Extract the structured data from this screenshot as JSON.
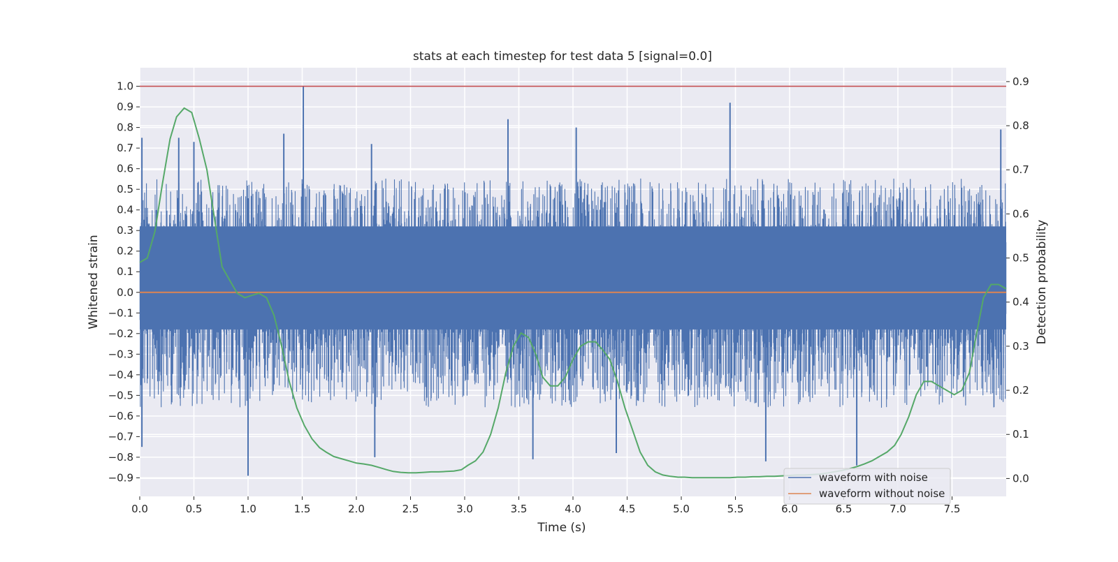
{
  "chart_data": {
    "type": "line",
    "title": "stats at each timestep for test data 5 [signal=0.0]",
    "xlabel": "Time (s)",
    "ylabel": "Whitened strain",
    "y2label": "Detection probability",
    "xlim": [
      0.0,
      8.0
    ],
    "ylim": [
      -0.99,
      1.09
    ],
    "y2lim": [
      -0.0405,
      0.9315
    ],
    "x_ticks": [
      0.0,
      0.5,
      1.0,
      1.5,
      2.0,
      2.5,
      3.0,
      3.5,
      4.0,
      4.5,
      5.0,
      5.5,
      6.0,
      6.5,
      7.0,
      7.5
    ],
    "x_tick_labels": [
      "0.0",
      "0.5",
      "1.0",
      "1.5",
      "2.0",
      "2.5",
      "3.0",
      "3.5",
      "4.0",
      "4.5",
      "5.0",
      "5.5",
      "6.0",
      "6.5",
      "7.0",
      "7.5"
    ],
    "y_ticks": [
      1.0,
      0.9,
      0.8,
      0.7,
      0.6,
      0.5,
      0.4,
      0.3,
      0.2,
      0.1,
      0.0,
      -0.1,
      -0.2,
      -0.3,
      -0.4,
      -0.5,
      -0.6,
      -0.7,
      -0.8,
      -0.9
    ],
    "y_tick_labels": [
      "1.0",
      "0.9",
      "0.8",
      "0.7",
      "0.6",
      "0.5",
      "0.4",
      "0.3",
      "0.2",
      "0.1",
      "0.0",
      "−0.1",
      "−0.2",
      "−0.3",
      "−0.4",
      "−0.5",
      "−0.6",
      "−0.7",
      "−0.8",
      "−0.9"
    ],
    "y2_ticks": [
      0.9,
      0.8,
      0.7,
      0.6,
      0.5,
      0.4,
      0.3,
      0.2,
      0.1,
      0.0
    ],
    "y2_tick_labels": [
      "0.9",
      "0.8",
      "0.7",
      "0.6",
      "0.5",
      "0.4",
      "0.3",
      "0.2",
      "0.1",
      "0.0"
    ],
    "grid": true,
    "legend_position": "lower-right",
    "reference_line": {
      "y": 1.0,
      "color": "#c44e52"
    },
    "series": [
      {
        "name": "waveform with noise",
        "color": "#4c72b0",
        "axis": "left",
        "noise_envelope": {
          "typical_max": 0.5,
          "typical_min": -0.5
        },
        "peaks": [
          {
            "x": 0.02,
            "y": 0.75
          },
          {
            "x": 0.36,
            "y": 0.75
          },
          {
            "x": 0.5,
            "y": 0.73
          },
          {
            "x": 1.33,
            "y": 0.77
          },
          {
            "x": 1.51,
            "y": 1.0
          },
          {
            "x": 2.14,
            "y": 0.72
          },
          {
            "x": 3.4,
            "y": 0.84
          },
          {
            "x": 4.03,
            "y": 0.8
          },
          {
            "x": 5.45,
            "y": 0.92
          },
          {
            "x": 7.95,
            "y": 0.79
          },
          {
            "x": 1.0,
            "y": -0.89
          },
          {
            "x": 2.17,
            "y": -0.8
          },
          {
            "x": 3.63,
            "y": -0.81
          },
          {
            "x": 4.4,
            "y": -0.78
          },
          {
            "x": 5.78,
            "y": -0.82
          },
          {
            "x": 6.62,
            "y": -0.84
          },
          {
            "x": 0.02,
            "y": -0.75
          }
        ]
      },
      {
        "name": "waveform without noise",
        "color": "#dd8452",
        "axis": "left",
        "x": [
          0.0,
          8.0
        ],
        "y": [
          0.0,
          0.0
        ]
      },
      {
        "name": "detection probability",
        "color": "#55a868",
        "axis": "right",
        "x": [
          0.0,
          0.07,
          0.14,
          0.21,
          0.28,
          0.34,
          0.41,
          0.48,
          0.55,
          0.62,
          0.69,
          0.76,
          0.83,
          0.9,
          0.97,
          1.03,
          1.1,
          1.17,
          1.24,
          1.31,
          1.38,
          1.45,
          1.52,
          1.59,
          1.66,
          1.72,
          1.79,
          1.86,
          1.93,
          2.0,
          2.07,
          2.14,
          2.21,
          2.28,
          2.34,
          2.41,
          2.48,
          2.55,
          2.62,
          2.69,
          2.76,
          2.83,
          2.9,
          2.97,
          3.03,
          3.1,
          3.17,
          3.24,
          3.31,
          3.38,
          3.45,
          3.52,
          3.59,
          3.66,
          3.72,
          3.79,
          3.86,
          3.93,
          4.0,
          4.07,
          4.14,
          4.21,
          4.28,
          4.34,
          4.41,
          4.48,
          4.55,
          4.62,
          4.69,
          4.76,
          4.83,
          4.9,
          4.97,
          5.03,
          5.1,
          5.17,
          5.24,
          5.31,
          5.38,
          5.45,
          5.52,
          5.59,
          5.66,
          5.72,
          5.79,
          5.86,
          5.93,
          6.0,
          6.07,
          6.14,
          6.21,
          6.28,
          6.34,
          6.41,
          6.48,
          6.55,
          6.62,
          6.69,
          6.76,
          6.83,
          6.9,
          6.97,
          7.03,
          7.1,
          7.17,
          7.24,
          7.31,
          7.38,
          7.45,
          7.52,
          7.59,
          7.66,
          7.72,
          7.79,
          7.86,
          7.93,
          8.0
        ],
        "y": [
          0.49,
          0.5,
          0.56,
          0.67,
          0.77,
          0.82,
          0.84,
          0.83,
          0.77,
          0.7,
          0.59,
          0.48,
          0.45,
          0.42,
          0.41,
          0.415,
          0.42,
          0.41,
          0.37,
          0.3,
          0.22,
          0.16,
          0.12,
          0.09,
          0.07,
          0.06,
          0.05,
          0.045,
          0.04,
          0.035,
          0.033,
          0.03,
          0.025,
          0.02,
          0.016,
          0.014,
          0.013,
          0.013,
          0.014,
          0.015,
          0.015,
          0.016,
          0.017,
          0.02,
          0.03,
          0.04,
          0.06,
          0.1,
          0.16,
          0.24,
          0.3,
          0.33,
          0.32,
          0.28,
          0.23,
          0.21,
          0.21,
          0.23,
          0.27,
          0.3,
          0.31,
          0.31,
          0.29,
          0.27,
          0.22,
          0.16,
          0.11,
          0.06,
          0.03,
          0.015,
          0.008,
          0.005,
          0.003,
          0.003,
          0.002,
          0.002,
          0.002,
          0.002,
          0.002,
          0.002,
          0.003,
          0.003,
          0.004,
          0.004,
          0.005,
          0.005,
          0.006,
          0.007,
          0.008,
          0.008,
          0.009,
          0.01,
          0.012,
          0.015,
          0.018,
          0.022,
          0.027,
          0.033,
          0.04,
          0.05,
          0.06,
          0.075,
          0.1,
          0.14,
          0.19,
          0.22,
          0.22,
          0.21,
          0.2,
          0.19,
          0.2,
          0.24,
          0.32,
          0.41,
          0.44,
          0.44,
          0.43
        ]
      }
    ]
  }
}
